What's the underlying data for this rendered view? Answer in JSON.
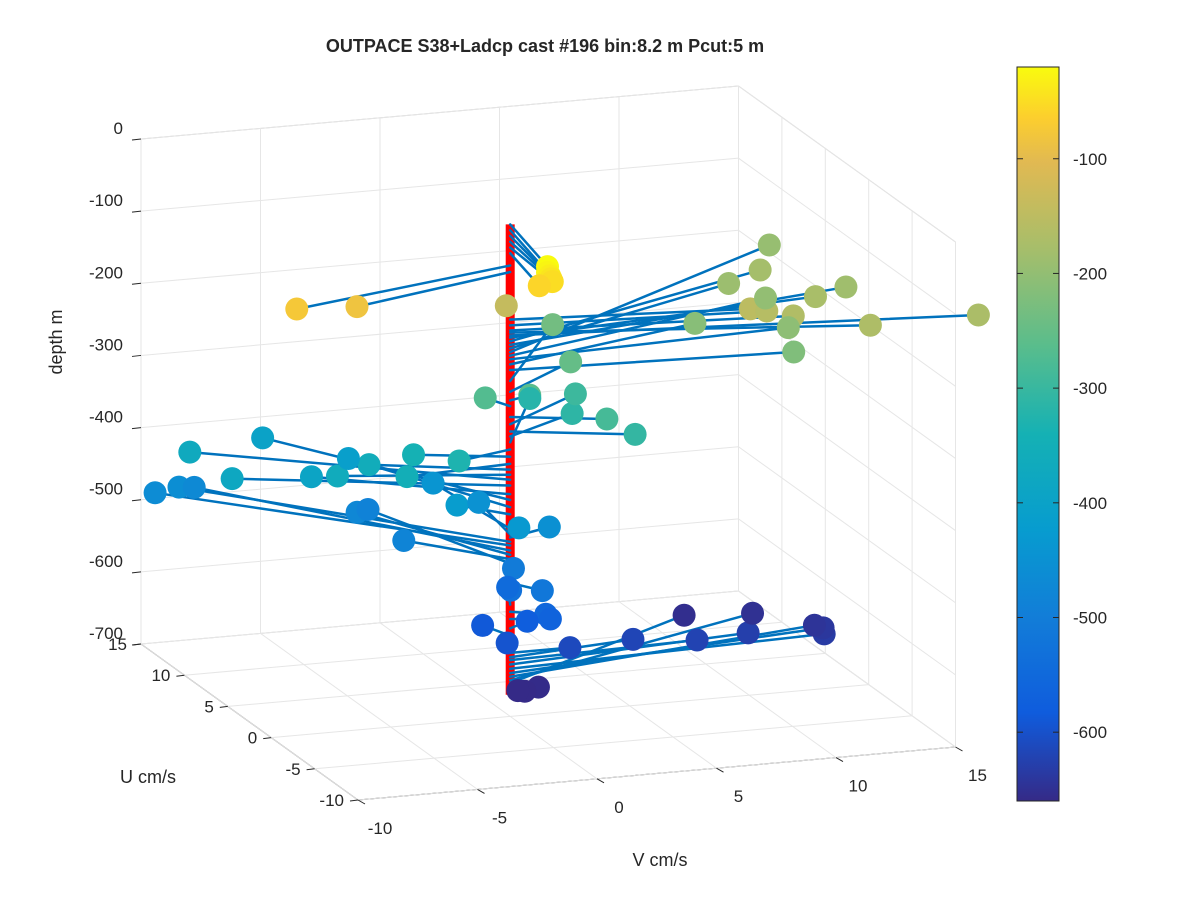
{
  "chart_data": {
    "type": "scatter3d",
    "title": "OUTPACE S38+Ladcp cast #196 bin:8.2 m  Pcut:5 m",
    "xlabel": "V cm/s",
    "ylabel": "U cm/s",
    "zlabel": "depth m",
    "xlim": [
      -10,
      15
    ],
    "ylim": [
      -10,
      15
    ],
    "zlim": [
      -700,
      0
    ],
    "xticks": [
      "-10",
      "-5",
      "0",
      "5",
      "10",
      "15"
    ],
    "yticks": [
      "-10",
      "-5",
      "0",
      "5",
      "10",
      "15"
    ],
    "zticks": [
      "0",
      "-100",
      "-200",
      "-300",
      "-400",
      "-500",
      "-600",
      "-700"
    ],
    "grid": true,
    "colorbar": {
      "range": [
        -660,
        -20
      ],
      "ticks": [
        "-100",
        "-200",
        "-300",
        "-400",
        "-500",
        "-600"
      ],
      "colormap": "parula"
    },
    "profile_line_color": "#ff0000",
    "arrow_color": "#0072bd",
    "points": [
      {
        "v": -0.8,
        "u": -6.5,
        "depth": -18
      },
      {
        "v": -0.8,
        "u": -6.5,
        "depth": -26
      },
      {
        "v": -0.6,
        "u": -6.2,
        "depth": -34
      },
      {
        "v": -0.4,
        "u": -5.8,
        "depth": -42
      },
      {
        "v": -0.2,
        "u": -5.4,
        "depth": -50
      },
      {
        "v": -0.6,
        "u": -5.0,
        "depth": -58
      },
      {
        "v": -10.2,
        "u": -3.5,
        "depth": -75
      },
      {
        "v": -7.5,
        "u": -3.0,
        "depth": -84
      },
      {
        "v": 0.2,
        "u": 1.0,
        "depth": -140
      },
      {
        "v": 9.5,
        "u": -1.5,
        "depth": -150
      },
      {
        "v": 10.3,
        "u": -1.2,
        "depth": -158
      },
      {
        "v": 11.3,
        "u": -1.5,
        "depth": -165
      },
      {
        "v": 13.8,
        "u": -3.5,
        "depth": -168
      },
      {
        "v": 18.5,
        "u": -3.0,
        "depth": -172
      },
      {
        "v": 13.5,
        "u": 2.0,
        "depth": -175
      },
      {
        "v": 13.0,
        "u": 7.0,
        "depth": -180
      },
      {
        "v": 15.5,
        "u": 4.0,
        "depth": -185
      },
      {
        "v": 11.5,
        "u": 6.5,
        "depth": -190
      },
      {
        "v": 15.2,
        "u": 12.0,
        "depth": -195
      },
      {
        "v": 12.5,
        "u": 5.0,
        "depth": -200
      },
      {
        "v": 12.0,
        "u": 1.0,
        "depth": -205
      },
      {
        "v": 9.0,
        "u": 3.5,
        "depth": -212
      },
      {
        "v": 11.5,
        "u": -1.0,
        "depth": -220
      },
      {
        "v": 4.5,
        "u": 7.5,
        "depth": -235
      },
      {
        "v": 3.8,
        "u": 3.5,
        "depth": -250
      },
      {
        "v": 1.0,
        "u": 0.5,
        "depth": -262
      },
      {
        "v": -0.5,
        "u": 1.5,
        "depth": -270
      },
      {
        "v": 3.5,
        "u": -1.5,
        "depth": -285
      },
      {
        "v": 4.0,
        "u": 3.5,
        "depth": -295
      },
      {
        "v": 4.5,
        "u": -2.0,
        "depth": -305
      },
      {
        "v": 3.5,
        "u": 2.5,
        "depth": -312
      },
      {
        "v": 3.0,
        "u": 6.0,
        "depth": -320
      },
      {
        "v": -2.5,
        "u": -1.0,
        "depth": -330
      },
      {
        "v": -3.5,
        "u": 1.5,
        "depth": -340
      },
      {
        "v": -4.5,
        "u": -0.5,
        "depth": -350
      },
      {
        "v": -5.0,
        "u": 2.5,
        "depth": -358
      },
      {
        "v": -6.5,
        "u": 2.0,
        "depth": -365
      },
      {
        "v": -10.5,
        "u": 8.0,
        "depth": -372
      },
      {
        "v": -10.0,
        "u": 4.5,
        "depth": -380
      },
      {
        "v": -6.5,
        "u": 5.0,
        "depth": -392
      },
      {
        "v": -6.0,
        "u": 12.0,
        "depth": -400
      },
      {
        "v": -3.5,
        "u": 9.0,
        "depth": -410
      },
      {
        "v": -1.5,
        "u": 2.0,
        "depth": -420
      },
      {
        "v": 0.0,
        "u": -1.0,
        "depth": -430
      },
      {
        "v": -0.5,
        "u": 7.5,
        "depth": -440
      },
      {
        "v": 0.5,
        "u": 5.0,
        "depth": -448
      },
      {
        "v": 2.0,
        "u": 1.0,
        "depth": -452
      },
      {
        "v": -9.5,
        "u": 12.0,
        "depth": -458
      },
      {
        "v": -10.5,
        "u": 12.0,
        "depth": -463
      },
      {
        "v": -8.5,
        "u": 13.0,
        "depth": -470
      },
      {
        "v": -3.5,
        "u": 8.0,
        "depth": -476
      },
      {
        "v": -3.0,
        "u": 4.0,
        "depth": -482
      },
      {
        "v": -2.5,
        "u": 9.5,
        "depth": -488
      },
      {
        "v": 0.5,
        "u": 1.0,
        "depth": -505
      },
      {
        "v": 0.8,
        "u": -1.5,
        "depth": -515
      },
      {
        "v": 0.2,
        "u": 0.5,
        "depth": -530
      },
      {
        "v": 0.8,
        "u": 2.5,
        "depth": -545
      },
      {
        "v": 1.2,
        "u": -0.8,
        "depth": -555
      },
      {
        "v": 1.5,
        "u": -0.5,
        "depth": -565
      },
      {
        "v": 1.0,
        "u": 0.8,
        "depth": -578
      },
      {
        "v": -0.5,
        "u": 1.8,
        "depth": -588
      },
      {
        "v": -0.2,
        "u": -0.2,
        "depth": -596
      },
      {
        "v": 2.5,
        "u": 0.0,
        "depth": -612
      },
      {
        "v": 5.5,
        "u": 1.0,
        "depth": -618
      },
      {
        "v": 8.0,
        "u": 0.5,
        "depth": -622
      },
      {
        "v": 10.5,
        "u": 1.5,
        "depth": -628
      },
      {
        "v": 13.5,
        "u": 1.0,
        "depth": -634
      },
      {
        "v": 14.0,
        "u": 2.5,
        "depth": -640
      },
      {
        "v": 14.0,
        "u": 3.5,
        "depth": -645
      },
      {
        "v": 12.5,
        "u": 6.5,
        "depth": -650
      },
      {
        "v": 10.0,
        "u": 7.5,
        "depth": -654
      },
      {
        "v": 1.0,
        "u": -0.5,
        "depth": -658
      },
      {
        "v": 0.5,
        "u": -0.3,
        "depth": -664
      },
      {
        "v": 0.5,
        "u": 0.5,
        "depth": -670
      }
    ]
  }
}
